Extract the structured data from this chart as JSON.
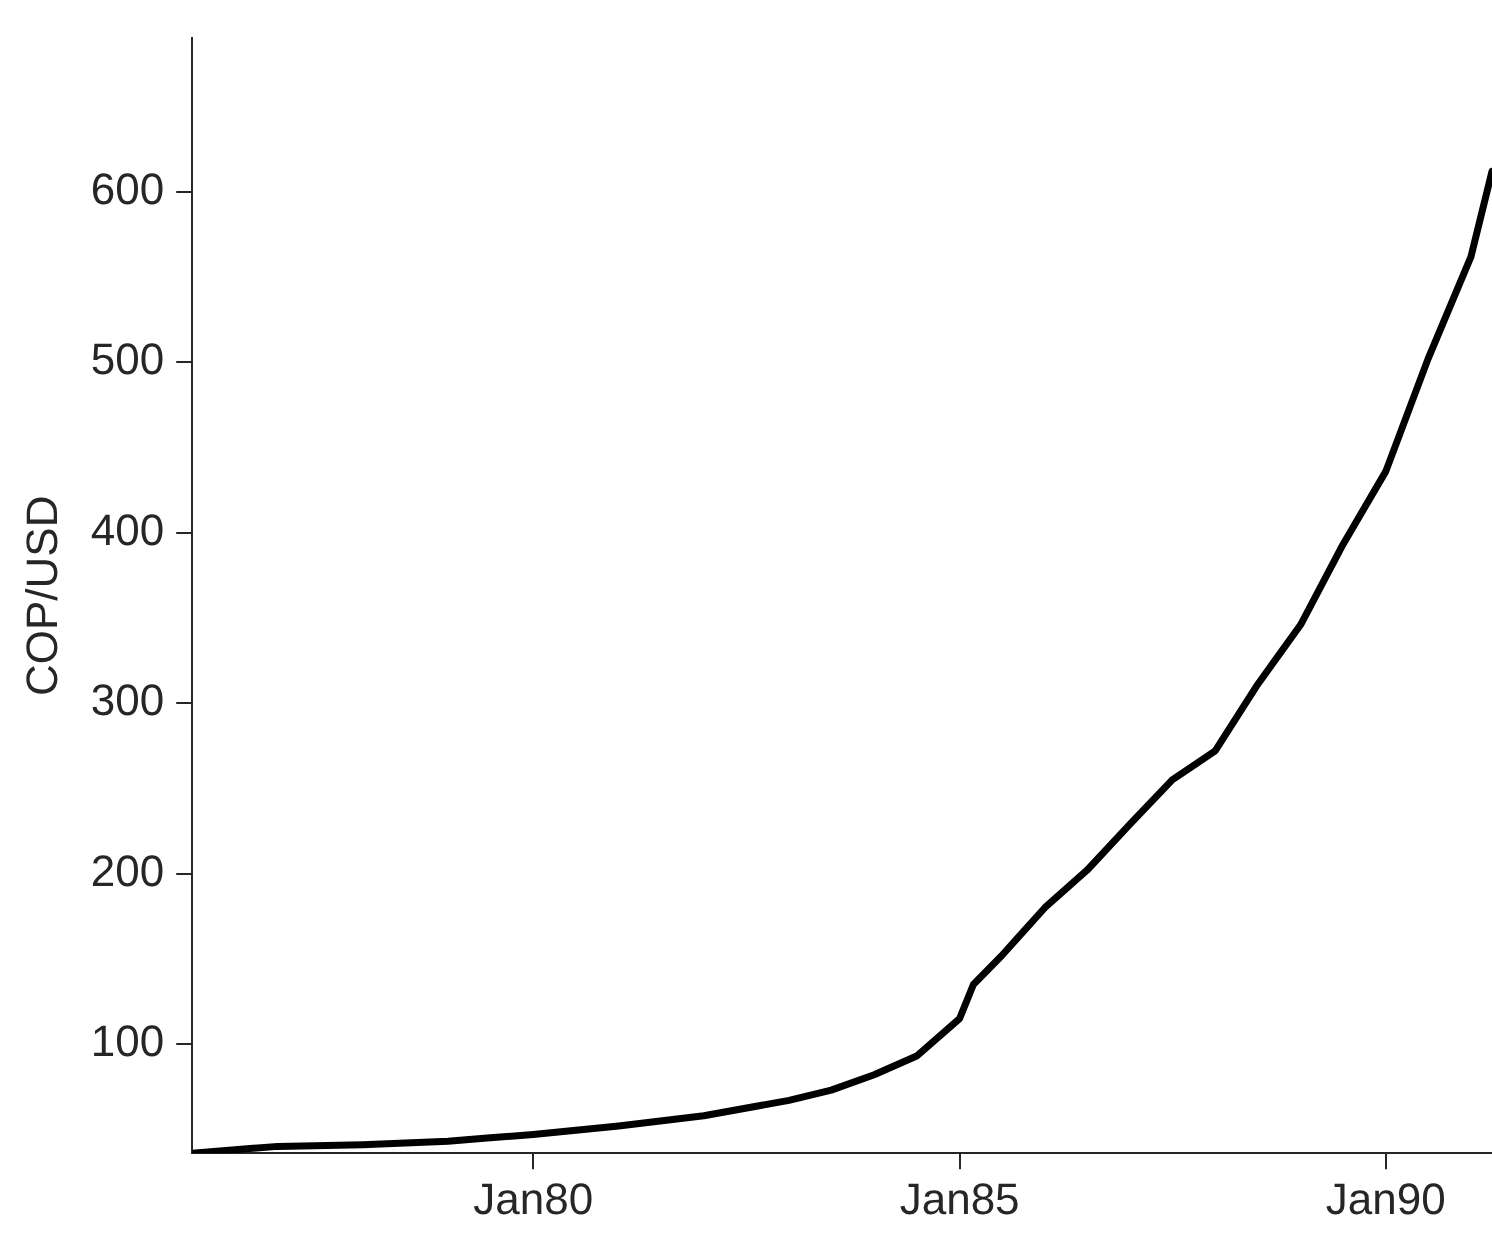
{
  "chart_data": {
    "type": "line",
    "ylabel": "COP/USD",
    "x": [
      "1976-01",
      "1977-01",
      "1978-01",
      "1979-01",
      "1979-07",
      "1980-01",
      "1981-01",
      "1982-01",
      "1983-01",
      "1983-07",
      "1984-01",
      "1984-07",
      "1985-01",
      "1985-03",
      "1985-07",
      "1986-01",
      "1986-07",
      "1987-01",
      "1987-07",
      "1988-01",
      "1988-07",
      "1989-01",
      "1989-07",
      "1990-01",
      "1990-07",
      "1991-01",
      "1991-04"
    ],
    "series": [
      {
        "color": "#000000",
        "values": [
          36,
          40,
          41,
          43,
          45,
          47,
          52,
          58,
          67,
          73,
          82,
          93,
          115,
          135,
          152,
          180,
          202,
          229,
          255,
          272,
          311,
          346,
          393,
          436,
          502,
          562,
          612
        ]
      }
    ],
    "xlim": [
      "1976-01",
      "1991-04"
    ],
    "xticks": [
      {
        "value": "1980-01",
        "label": "Jan80"
      },
      {
        "value": "1985-01",
        "label": "Jan85"
      },
      {
        "value": "1990-01",
        "label": "Jan90"
      }
    ],
    "ylim": [
      36,
      690
    ],
    "yticks": [
      100,
      200,
      300,
      400,
      500,
      600
    ],
    "grid": false,
    "legend": false,
    "marker": "none",
    "line_style": "solid"
  }
}
